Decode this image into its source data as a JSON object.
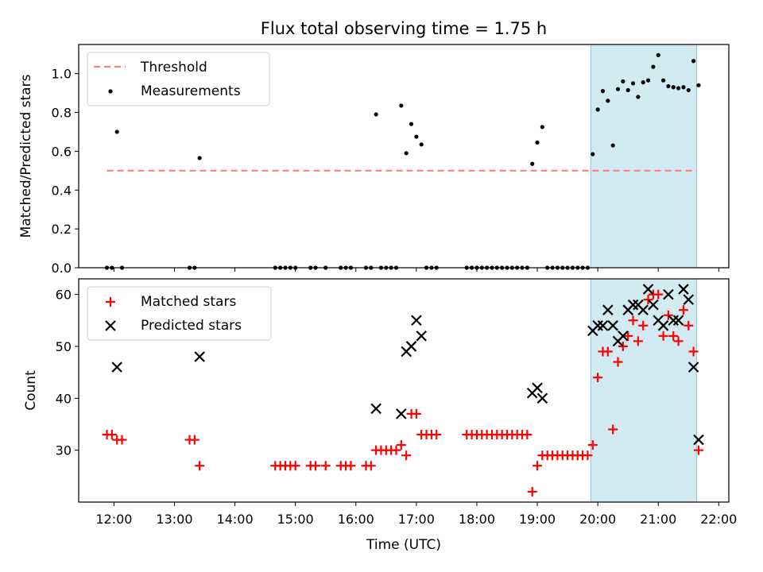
{
  "chart_data": [
    {
      "type": "scatter",
      "title": "Flux total observing time = 1.75 h",
      "ylabel": "Matched/Predicted stars",
      "ylim": [
        0,
        1.15
      ],
      "yticks": [
        "0.0",
        "0.2",
        "0.4",
        "0.6",
        "0.8",
        "1.0"
      ],
      "legend_position": "top-left",
      "shaded_interval": [
        "19:53",
        "21:38"
      ],
      "shade_color": "#add8e6",
      "threshold": {
        "name": "Threshold",
        "value": 0.5,
        "color": "#ff7f7f",
        "x_range": [
          "11:53",
          "21:38"
        ]
      },
      "series": [
        {
          "name": "Measurements",
          "color": "#000000",
          "points": [
            [
              "11:53",
              0
            ],
            [
              "11:58",
              0
            ],
            [
              "12:03",
              0.7
            ],
            [
              "12:08",
              0
            ],
            [
              "13:15",
              0
            ],
            [
              "13:20",
              0
            ],
            [
              "13:25",
              0.565
            ],
            [
              "14:40",
              0
            ],
            [
              "14:45",
              0
            ],
            [
              "14:50",
              0
            ],
            [
              "14:55",
              0
            ],
            [
              "15:00",
              0
            ],
            [
              "15:15",
              0
            ],
            [
              "15:20",
              0
            ],
            [
              "15:30",
              0
            ],
            [
              "15:45",
              0
            ],
            [
              "15:50",
              0
            ],
            [
              "15:55",
              0
            ],
            [
              "16:10",
              0
            ],
            [
              "16:15",
              0
            ],
            [
              "16:20",
              0.79
            ],
            [
              "16:25",
              0
            ],
            [
              "16:30",
              0
            ],
            [
              "16:35",
              0
            ],
            [
              "16:40",
              0
            ],
            [
              "16:45",
              0.835
            ],
            [
              "16:50",
              0.59
            ],
            [
              "16:55",
              0.74
            ],
            [
              "17:00",
              0.675
            ],
            [
              "17:05",
              0.635
            ],
            [
              "17:10",
              0
            ],
            [
              "17:15",
              0
            ],
            [
              "17:20",
              0
            ],
            [
              "17:50",
              0
            ],
            [
              "17:55",
              0
            ],
            [
              "18:00",
              0
            ],
            [
              "18:05",
              0
            ],
            [
              "18:10",
              0
            ],
            [
              "18:15",
              0
            ],
            [
              "18:20",
              0
            ],
            [
              "18:25",
              0
            ],
            [
              "18:30",
              0
            ],
            [
              "18:35",
              0
            ],
            [
              "18:40",
              0
            ],
            [
              "18:45",
              0
            ],
            [
              "18:50",
              0
            ],
            [
              "18:55",
              0.535
            ],
            [
              "19:00",
              0.645
            ],
            [
              "19:05",
              0.725
            ],
            [
              "19:10",
              0
            ],
            [
              "19:15",
              0
            ],
            [
              "19:20",
              0
            ],
            [
              "19:25",
              0
            ],
            [
              "19:30",
              0
            ],
            [
              "19:35",
              0
            ],
            [
              "19:40",
              0
            ],
            [
              "19:45",
              0
            ],
            [
              "19:50",
              0
            ],
            [
              "19:55",
              0.585
            ],
            [
              "20:00",
              0.815
            ],
            [
              "20:05",
              0.91
            ],
            [
              "20:10",
              0.86
            ],
            [
              "20:15",
              0.63
            ],
            [
              "20:20",
              0.92
            ],
            [
              "20:25",
              0.96
            ],
            [
              "20:30",
              0.915
            ],
            [
              "20:35",
              0.95
            ],
            [
              "20:40",
              0.88
            ],
            [
              "20:45",
              0.955
            ],
            [
              "20:50",
              0.965
            ],
            [
              "20:55",
              1.035
            ],
            [
              "21:00",
              1.095
            ],
            [
              "21:05",
              0.965
            ],
            [
              "21:10",
              0.935
            ],
            [
              "21:15",
              0.93
            ],
            [
              "21:20",
              0.925
            ],
            [
              "21:25",
              0.93
            ],
            [
              "21:30",
              0.915
            ],
            [
              "21:35",
              1.065
            ],
            [
              "21:40",
              0.94
            ]
          ]
        }
      ]
    },
    {
      "type": "scatter",
      "xlabel": "Time (UTC)",
      "ylabel": "Count",
      "ylim": [
        20,
        63
      ],
      "yticks": [
        "30",
        "40",
        "50",
        "60"
      ],
      "xlim": [
        "11:25",
        "22:10"
      ],
      "xticks": [
        "12:00",
        "13:00",
        "14:00",
        "15:00",
        "16:00",
        "17:00",
        "18:00",
        "19:00",
        "20:00",
        "21:00",
        "22:00"
      ],
      "legend_position": "top-left",
      "shaded_interval": [
        "19:53",
        "21:38"
      ],
      "shade_color": "#add8e6",
      "series": [
        {
          "name": "Matched stars",
          "marker": "+",
          "color": "#ff0000",
          "points": [
            [
              "11:53",
              33
            ],
            [
              "11:58",
              33
            ],
            [
              "12:03",
              32
            ],
            [
              "12:08",
              32
            ],
            [
              "13:15",
              32
            ],
            [
              "13:20",
              32
            ],
            [
              "13:25",
              27
            ],
            [
              "14:40",
              27
            ],
            [
              "14:45",
              27
            ],
            [
              "14:50",
              27
            ],
            [
              "14:55",
              27
            ],
            [
              "15:00",
              27
            ],
            [
              "15:15",
              27
            ],
            [
              "15:20",
              27
            ],
            [
              "15:30",
              27
            ],
            [
              "15:45",
              27
            ],
            [
              "15:50",
              27
            ],
            [
              "15:55",
              27
            ],
            [
              "16:10",
              27
            ],
            [
              "16:15",
              27
            ],
            [
              "16:20",
              30
            ],
            [
              "16:25",
              30
            ],
            [
              "16:30",
              30
            ],
            [
              "16:35",
              30
            ],
            [
              "16:40",
              30
            ],
            [
              "16:45",
              31
            ],
            [
              "16:50",
              29
            ],
            [
              "16:55",
              37
            ],
            [
              "17:00",
              37
            ],
            [
              "17:05",
              33
            ],
            [
              "17:10",
              33
            ],
            [
              "17:15",
              33
            ],
            [
              "17:20",
              33
            ],
            [
              "17:50",
              33
            ],
            [
              "17:55",
              33
            ],
            [
              "18:00",
              33
            ],
            [
              "18:05",
              33
            ],
            [
              "18:10",
              33
            ],
            [
              "18:15",
              33
            ],
            [
              "18:20",
              33
            ],
            [
              "18:25",
              33
            ],
            [
              "18:30",
              33
            ],
            [
              "18:35",
              33
            ],
            [
              "18:40",
              33
            ],
            [
              "18:45",
              33
            ],
            [
              "18:50",
              33
            ],
            [
              "18:55",
              22
            ],
            [
              "19:00",
              27
            ],
            [
              "19:05",
              29
            ],
            [
              "19:10",
              29
            ],
            [
              "19:15",
              29
            ],
            [
              "19:20",
              29
            ],
            [
              "19:25",
              29
            ],
            [
              "19:30",
              29
            ],
            [
              "19:35",
              29
            ],
            [
              "19:40",
              29
            ],
            [
              "19:45",
              29
            ],
            [
              "19:50",
              29
            ],
            [
              "19:55",
              31
            ],
            [
              "20:00",
              44
            ],
            [
              "20:05",
              49
            ],
            [
              "20:10",
              49
            ],
            [
              "20:15",
              34
            ],
            [
              "20:20",
              47
            ],
            [
              "20:25",
              50
            ],
            [
              "20:30",
              52
            ],
            [
              "20:35",
              55
            ],
            [
              "20:40",
              51
            ],
            [
              "20:45",
              54
            ],
            [
              "20:50",
              59
            ],
            [
              "20:55",
              60
            ],
            [
              "21:00",
              60
            ],
            [
              "21:05",
              52
            ],
            [
              "21:10",
              56
            ],
            [
              "21:15",
              52
            ],
            [
              "21:20",
              51
            ],
            [
              "21:25",
              57
            ],
            [
              "21:30",
              54
            ],
            [
              "21:35",
              49
            ],
            [
              "21:40",
              30
            ]
          ]
        },
        {
          "name": "Predicted stars",
          "marker": "x",
          "color": "#000000",
          "points": [
            [
              "12:03",
              46
            ],
            [
              "13:25",
              48
            ],
            [
              "16:20",
              38
            ],
            [
              "16:45",
              37
            ],
            [
              "16:50",
              49
            ],
            [
              "16:55",
              50
            ],
            [
              "17:00",
              55
            ],
            [
              "17:05",
              52
            ],
            [
              "18:55",
              41
            ],
            [
              "19:00",
              42
            ],
            [
              "19:05",
              40
            ],
            [
              "19:55",
              53
            ],
            [
              "20:00",
              54
            ],
            [
              "20:05",
              54
            ],
            [
              "20:10",
              57
            ],
            [
              "20:15",
              54
            ],
            [
              "20:20",
              51
            ],
            [
              "20:25",
              52
            ],
            [
              "20:30",
              57
            ],
            [
              "20:35",
              58
            ],
            [
              "20:40",
              58
            ],
            [
              "20:45",
              57
            ],
            [
              "20:50",
              61
            ],
            [
              "20:55",
              58
            ],
            [
              "21:00",
              55
            ],
            [
              "21:05",
              54
            ],
            [
              "21:10",
              60
            ],
            [
              "21:15",
              55
            ],
            [
              "21:20",
              55
            ],
            [
              "21:25",
              61
            ],
            [
              "21:30",
              59
            ],
            [
              "21:35",
              46
            ],
            [
              "21:40",
              32
            ]
          ]
        }
      ]
    }
  ]
}
